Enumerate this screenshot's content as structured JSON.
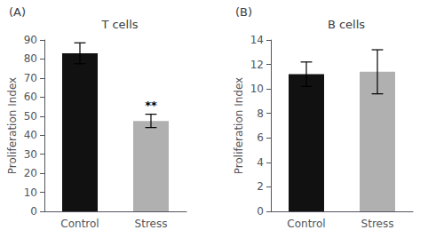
{
  "chart_data": [
    {
      "type": "bar",
      "title": "T cells",
      "annotations": [
        {
          "text": "(A)"
        },
        {
          "text": "**",
          "category": "Stress"
        }
      ],
      "categories": [
        "Control",
        "Stress"
      ],
      "values": [
        83,
        47.5
      ],
      "errors": [
        5.5,
        3.5
      ],
      "colors": [
        "#111111",
        "#b0b0b0"
      ],
      "ylim": [
        0,
        90
      ],
      "yticks": [
        0,
        10,
        20,
        30,
        40,
        50,
        60,
        70,
        80,
        90
      ],
      "ylabel": "Proliferation Index",
      "grid": false
    },
    {
      "type": "bar",
      "title": "B cells",
      "annotations": [
        {
          "text": "(B)"
        }
      ],
      "categories": [
        "Control",
        "Stress"
      ],
      "values": [
        11.2,
        11.4
      ],
      "errors": [
        1.0,
        1.8
      ],
      "colors": [
        "#111111",
        "#b0b0b0"
      ],
      "ylim": [
        0,
        14
      ],
      "yticks": [
        0,
        2,
        4,
        6,
        8,
        10,
        12,
        14
      ],
      "ylabel": "Proliferation Index",
      "grid": false
    }
  ]
}
